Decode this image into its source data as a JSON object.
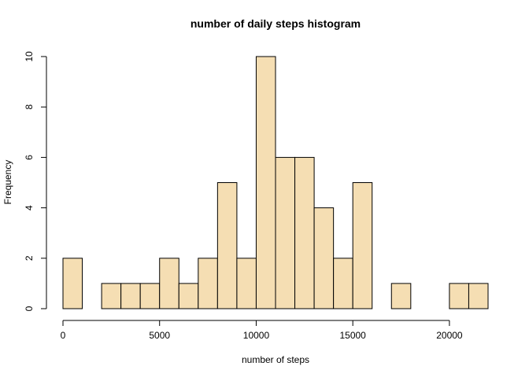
{
  "chart_data": {
    "type": "bar",
    "title": "number of daily steps histogram",
    "xlabel": "number of steps",
    "ylabel": "Frequency",
    "bin_width": 1000,
    "bins": [
      {
        "start": 0,
        "end": 1000,
        "count": 2
      },
      {
        "start": 1000,
        "end": 2000,
        "count": 0
      },
      {
        "start": 2000,
        "end": 3000,
        "count": 1
      },
      {
        "start": 3000,
        "end": 4000,
        "count": 1
      },
      {
        "start": 4000,
        "end": 5000,
        "count": 1
      },
      {
        "start": 5000,
        "end": 6000,
        "count": 2
      },
      {
        "start": 6000,
        "end": 7000,
        "count": 1
      },
      {
        "start": 7000,
        "end": 8000,
        "count": 2
      },
      {
        "start": 8000,
        "end": 9000,
        "count": 5
      },
      {
        "start": 9000,
        "end": 10000,
        "count": 2
      },
      {
        "start": 10000,
        "end": 11000,
        "count": 10
      },
      {
        "start": 11000,
        "end": 12000,
        "count": 6
      },
      {
        "start": 12000,
        "end": 13000,
        "count": 6
      },
      {
        "start": 13000,
        "end": 14000,
        "count": 4
      },
      {
        "start": 14000,
        "end": 15000,
        "count": 2
      },
      {
        "start": 15000,
        "end": 16000,
        "count": 5
      },
      {
        "start": 16000,
        "end": 17000,
        "count": 0
      },
      {
        "start": 17000,
        "end": 18000,
        "count": 1
      },
      {
        "start": 18000,
        "end": 19000,
        "count": 0
      },
      {
        "start": 19000,
        "end": 20000,
        "count": 0
      },
      {
        "start": 20000,
        "end": 21000,
        "count": 1
      },
      {
        "start": 21000,
        "end": 22000,
        "count": 1
      }
    ],
    "xlim": [
      0,
      22000
    ],
    "ylim": [
      0,
      10
    ],
    "x_ticks": [
      0,
      5000,
      10000,
      15000,
      20000
    ],
    "y_ticks": [
      0,
      2,
      4,
      6,
      8,
      10
    ],
    "grid": false,
    "bar_color": "#F5DEB3",
    "bar_edge_color": "#000000"
  }
}
